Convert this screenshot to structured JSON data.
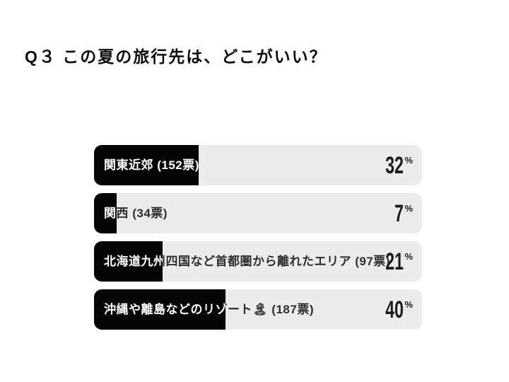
{
  "header": {
    "title": "Q３ この夏の旅行先は、どこがいい？"
  },
  "chart_data": {
    "type": "bar",
    "orientation": "horizontal",
    "title": "Q３ この夏の旅行先は、どこがいい？",
    "unit": "%",
    "xlim": [
      0,
      100
    ],
    "grid": false,
    "legend": false,
    "categories": [
      "関東近郊 (152票)",
      "関西 (34票)",
      "北海道九州四国など首都圏から離れたエリア (97票)",
      "沖縄や離島などのリゾート🏝 (187票)"
    ],
    "values": [
      32,
      7,
      21,
      40
    ],
    "votes": [
      152,
      34,
      97,
      187
    ],
    "colors": {
      "background": "#ffffff",
      "bar_fill": "#050505",
      "bar_track": "#ececec",
      "label_on_fill": "#ffffff",
      "label_on_track": "#2e2e2e",
      "percent_text": "#1c1c1c",
      "title_text": "#0d0d0d"
    },
    "bars": [
      {
        "label": "関東近郊 (152票)",
        "percent": 32
      },
      {
        "label": "関西 (34票)",
        "percent": 7
      },
      {
        "label": "北海道九州四国など首都圏から離れたエリア (97票)",
        "percent": 21
      },
      {
        "label": "沖縄や離島などのリゾート🏝 (187票)",
        "percent": 40
      }
    ]
  }
}
